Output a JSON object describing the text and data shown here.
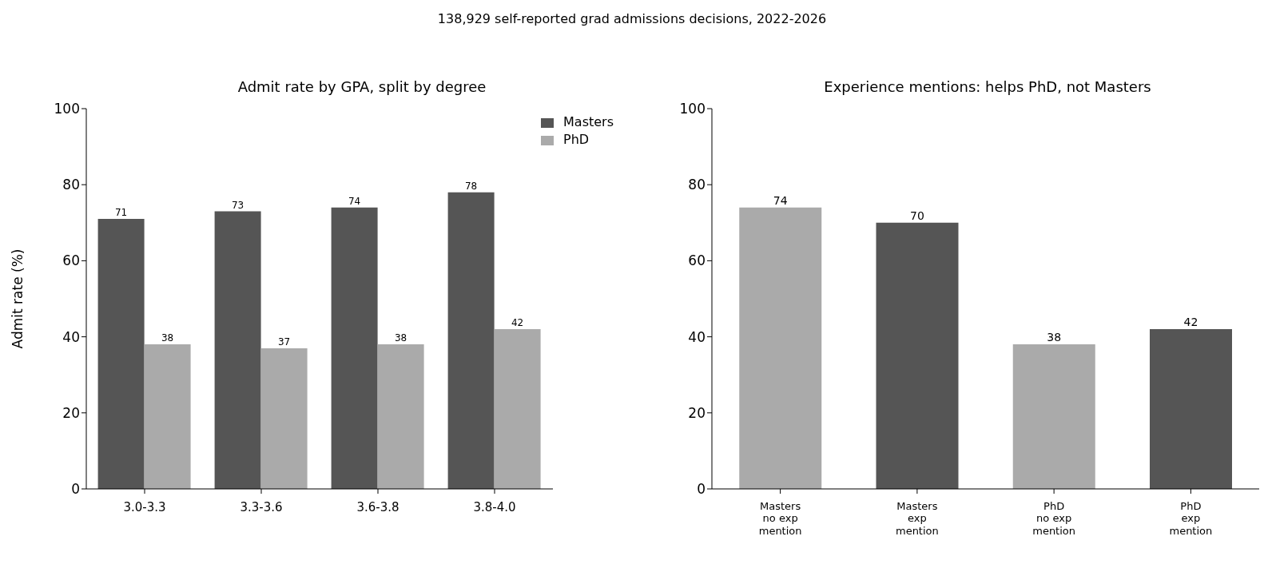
{
  "chart_data": [
    {
      "type": "bar",
      "title": "Admit rate by GPA, split by degree",
      "ylabel": "Admit rate (%)",
      "annotations": [
        "138,929 self-reported grad admissions decisions, 2022-2026"
      ],
      "categories": [
        "3.0-3.3",
        "3.3-3.6",
        "3.6-3.8",
        "3.8-4.0"
      ],
      "series": [
        {
          "name": "Masters",
          "color": "#555555",
          "values": [
            71,
            73,
            74,
            78
          ]
        },
        {
          "name": "PhD",
          "color": "#aaaaaa",
          "values": [
            38,
            37,
            38,
            42
          ]
        }
      ],
      "ylim": [
        0,
        100
      ],
      "yticks": [
        0,
        20,
        40,
        60,
        80,
        100
      ],
      "legend": "top right",
      "data_labels": true
    },
    {
      "type": "bar",
      "title": "Experience mentions: helps PhD, not Masters",
      "categories": [
        "Masters\nno exp\nmention",
        "Masters\nexp\nmention",
        "PhD\nno exp\nmention",
        "PhD\nexp\nmention"
      ],
      "values": [
        74,
        70,
        38,
        42
      ],
      "colors": [
        "#aaaaaa",
        "#555555",
        "#aaaaaa",
        "#555555"
      ],
      "ylim": [
        0,
        100
      ],
      "yticks": [
        0,
        20,
        40,
        60,
        80,
        100
      ],
      "data_labels": true
    }
  ]
}
